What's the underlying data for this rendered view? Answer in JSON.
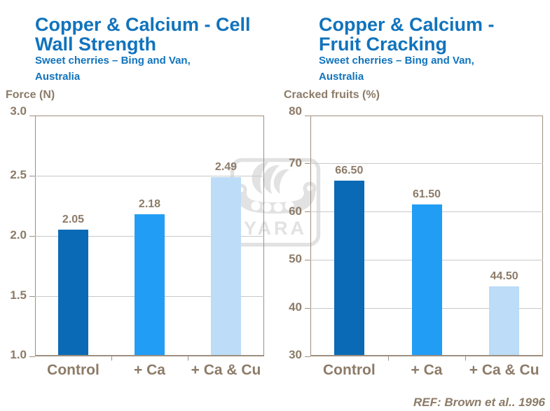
{
  "ref_note": "REF: Brown et al.. 1996",
  "watermark": {
    "text": "YARA",
    "color": "#e2e2e2"
  },
  "styles": {
    "title_color": "#1173BC",
    "axis_text_color": "#8C7B68",
    "axis_line_color": "#9E8F7F",
    "gridline_color": "#C9C9C9",
    "bar_colors": [
      "#0A6AB5",
      "#219DF5",
      "#BCDCF7"
    ],
    "background": "#FFFFFF"
  },
  "chart_data": [
    {
      "type": "bar",
      "title_lines": [
        "Copper & Calcium - Cell",
        "Wall Strength"
      ],
      "subtitle_lines": [
        "Sweet cherries – Bing and Van,",
        "Australia"
      ],
      "ylabel": "Force (N)",
      "categories": [
        "Control",
        "+ Ca",
        "+ Ca & Cu"
      ],
      "values": [
        2.05,
        2.18,
        2.49
      ],
      "value_labels": [
        "2.05",
        "2.18",
        "2.49"
      ],
      "ylim": [
        1.0,
        3.0
      ],
      "yticks": [
        1.0,
        1.5,
        2.0,
        2.5,
        3.0
      ],
      "ytick_labels": [
        "1.0",
        "1.5",
        "2.0",
        "2.5",
        "3.0"
      ],
      "grid": true,
      "legend": false
    },
    {
      "type": "bar",
      "title_lines": [
        "Copper & Calcium -",
        "Fruit Cracking"
      ],
      "subtitle_lines": [
        "Sweet cherries – Bing and Van,",
        "Australia"
      ],
      "ylabel": "Cracked fruits (%)",
      "categories": [
        "Control",
        "+ Ca",
        "+ Ca & Cu"
      ],
      "values": [
        66.5,
        61.5,
        44.5
      ],
      "value_labels": [
        "66.50",
        "61.50",
        "44.50"
      ],
      "ylim": [
        30,
        80
      ],
      "yticks": [
        30,
        40,
        50,
        60,
        70,
        80
      ],
      "ytick_labels": [
        "30",
        "40",
        "50",
        "60",
        "70",
        "80"
      ],
      "grid": true,
      "legend": false
    }
  ]
}
